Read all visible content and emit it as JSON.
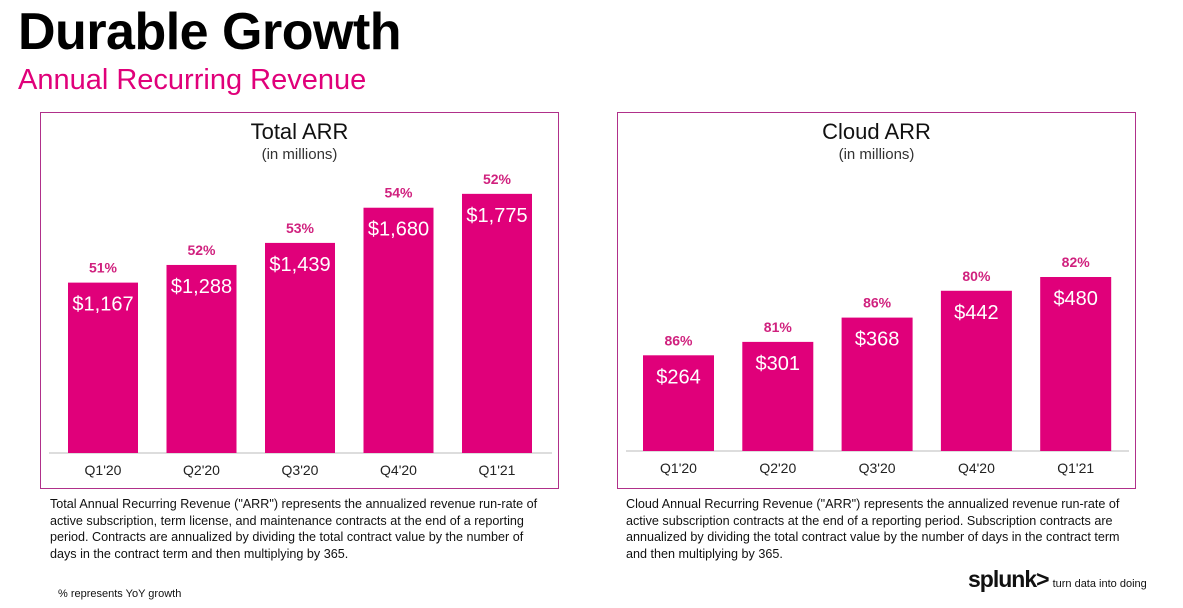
{
  "title": "Durable Growth",
  "subtitle": "Annual Recurring Revenue",
  "chart_data": [
    {
      "type": "bar",
      "title": "Total ARR",
      "subtitle": "(in millions)",
      "categories": [
        "Q1'20",
        "Q2'20",
        "Q3'20",
        "Q4'20",
        "Q1'21"
      ],
      "values": [
        1167,
        1288,
        1439,
        1680,
        1775
      ],
      "value_labels": [
        "$1,167",
        "$1,288",
        "$1,439",
        "$1,680",
        "$1,775"
      ],
      "growth_labels": [
        "51%",
        "52%",
        "53%",
        "54%",
        "52%"
      ],
      "color": "#e0007a"
    },
    {
      "type": "bar",
      "title": "Cloud ARR",
      "subtitle": "(in millions)",
      "categories": [
        "Q1'20",
        "Q2'20",
        "Q3'20",
        "Q4'20",
        "Q1'21"
      ],
      "values": [
        264,
        301,
        368,
        442,
        480
      ],
      "value_labels": [
        "$264",
        "$301",
        "$368",
        "$442",
        "$480"
      ],
      "growth_labels": [
        "86%",
        "81%",
        "86%",
        "80%",
        "82%"
      ],
      "color": "#e0007a"
    }
  ],
  "notes": {
    "total": "Total Annual Recurring Revenue (\"ARR\") represents the annualized revenue run-rate of active subscription, term license, and maintenance contracts at the end of a reporting period. Contracts are annualized by dividing the total contract value by the number of days in the contract term and then multiplying by 365.",
    "cloud": "Cloud Annual Recurring Revenue (\"ARR\") represents the annualized revenue run-rate of active subscription contracts at the end of a reporting period. Subscription contracts are annualized by dividing the total contract value by the number of days in the contract term and then multiplying by 365.",
    "footnote": "% represents YoY growth"
  },
  "logo": {
    "name": "splunk>",
    "tagline": "turn data into doing"
  }
}
